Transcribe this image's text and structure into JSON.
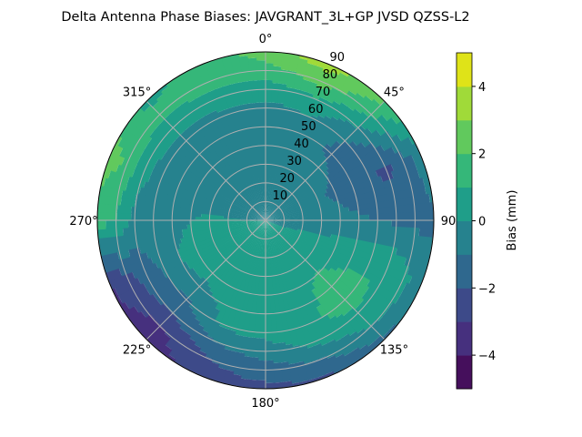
{
  "chart_data": {
    "type": "heatmap",
    "subtype": "polar-filled-contour",
    "title": "Delta Antenna Phase Biases: JAVGRANT_3L+GP  JVSD QZSS-L2",
    "angular_tick_labels": [
      "0°",
      "45°",
      "90",
      "135°",
      "180°",
      "225°",
      "270°",
      "315°"
    ],
    "angular_ticks": [
      0,
      45,
      90,
      135,
      180,
      225,
      270,
      315
    ],
    "angular_direction": "clockwise",
    "angular_zero": "north",
    "radial_ticks": [
      10,
      20,
      30,
      40,
      50,
      60,
      70,
      80,
      90
    ],
    "radial_tick_labels": [
      "10",
      "20",
      "30",
      "40",
      "50",
      "60",
      "70",
      "80",
      "90"
    ],
    "radial_range": [
      0,
      90
    ],
    "grid": true,
    "azimuth": [
      0,
      22.5,
      45,
      67.5,
      90,
      112.5,
      135,
      157.5,
      180,
      202.5,
      225,
      247.5,
      270,
      292.5,
      315,
      337.5
    ],
    "radius": [
      0,
      10,
      20,
      30,
      40,
      50,
      60,
      70,
      80,
      90
    ],
    "values": [
      [
        0,
        -0.5,
        -0.5,
        -0.5,
        -0.5,
        -0.5,
        -0.3,
        0.5,
        1.5,
        2.5
      ],
      [
        0,
        -0.5,
        -0.5,
        -0.5,
        -0.5,
        -0.6,
        0.0,
        0.8,
        2.5,
        3.5
      ],
      [
        0,
        -0.5,
        -0.5,
        -0.5,
        -0.8,
        -1.2,
        -1.0,
        0.0,
        1.2,
        2.2
      ],
      [
        0,
        -0.5,
        -0.5,
        -0.8,
        -1.2,
        -1.5,
        -1.8,
        -2.3,
        -1.5,
        -0.5
      ],
      [
        0,
        -0.3,
        -0.5,
        -0.6,
        -0.7,
        -0.9,
        -1.0,
        -1.2,
        -1.3,
        -1.2
      ],
      [
        0,
        0.0,
        0.2,
        0.35,
        0.5,
        0.65,
        0.8,
        1.0,
        0.3,
        -0.5
      ],
      [
        0,
        0.2,
        0.4,
        0.6,
        1.1,
        1.5,
        1.5,
        0.8,
        0.0,
        -1.3
      ],
      [
        0,
        0.3,
        0.4,
        0.5,
        0.6,
        0.65,
        0.7,
        0.3,
        -1.0,
        -2.1
      ],
      [
        0,
        0.3,
        0.3,
        0.3,
        0.3,
        0.3,
        0.3,
        -0.5,
        -1.5,
        -2.3
      ],
      [
        0,
        0.3,
        0.3,
        0.3,
        0.3,
        0.25,
        0.2,
        -1.0,
        -2.0,
        -2.5
      ],
      [
        0,
        0.3,
        0.3,
        0.3,
        0.2,
        -0.2,
        -1.2,
        -2.0,
        -3.2,
        -3.5
      ],
      [
        0,
        0.3,
        0.4,
        0.5,
        0.3,
        0.0,
        -0.8,
        -1.5,
        -2.3,
        -3.0
      ],
      [
        0,
        0.0,
        0.1,
        0.2,
        0.0,
        -0.2,
        -0.6,
        -0.3,
        1.0,
        1.5
      ],
      [
        0,
        -0.5,
        -0.5,
        -0.5,
        -0.5,
        -0.5,
        -0.4,
        0.3,
        1.8,
        2.5
      ],
      [
        0,
        -0.5,
        -0.5,
        -0.5,
        -0.5,
        -0.5,
        -0.3,
        0.4,
        1.2,
        0.8
      ],
      [
        0,
        -0.5,
        -0.5,
        -0.5,
        -0.5,
        -0.5,
        -0.3,
        0.5,
        1.6,
        1.2
      ]
    ],
    "colorbar": {
      "label": "Bias (mm)",
      "levels": [
        -5,
        -4,
        -3,
        -2,
        -1,
        0,
        1,
        2,
        3,
        4,
        5
      ],
      "tick_values": [
        -4,
        -2,
        0,
        2,
        4
      ],
      "tick_labels": [
        "−4",
        "−2",
        "0",
        "2",
        "4"
      ],
      "colormap": "viridis",
      "colors": [
        "#450f5c",
        "#46307e",
        "#3d4a89",
        "#2f688e",
        "#26828e",
        "#1f9e89",
        "#35b779",
        "#61c95d",
        "#a0da39",
        "#dfe318"
      ]
    }
  }
}
